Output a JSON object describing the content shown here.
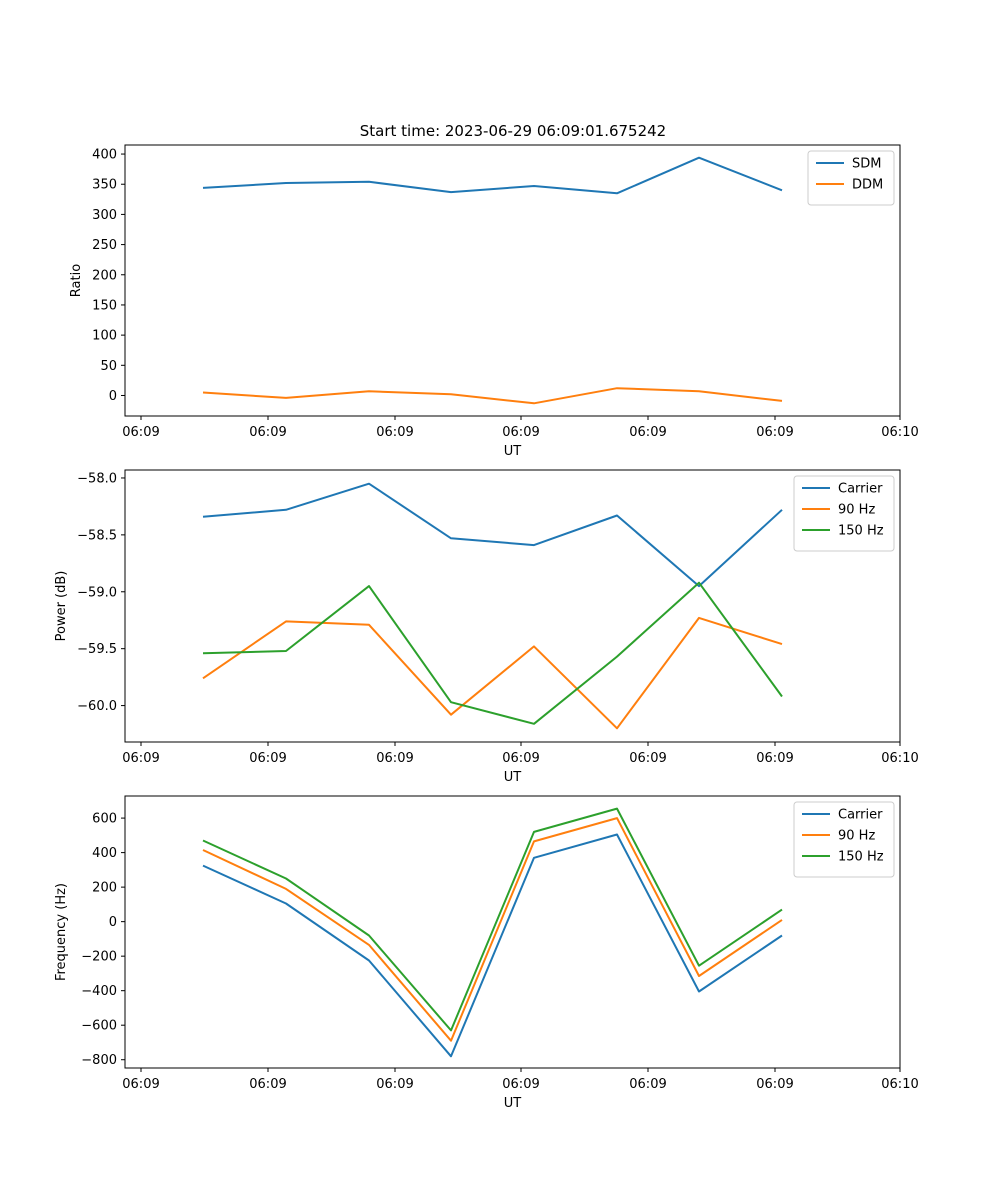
{
  "figure": {
    "title": "Start time: 2023-06-29 06:09:01.675242"
  },
  "chart_data": [
    {
      "type": "line",
      "title": "Start time: 2023-06-29 06:09:01.675242",
      "xlabel": "UT",
      "ylabel": "Ratio",
      "x_tick_labels": [
        "06:09",
        "06:09",
        "06:09",
        "06:09",
        "06:09",
        "06:09",
        "06:10"
      ],
      "y_ticks": [
        0,
        50,
        100,
        150,
        200,
        250,
        300,
        350,
        400
      ],
      "ylim": [
        -34,
        415
      ],
      "legend": "top-right",
      "grid": false,
      "series": [
        {
          "name": "SDM",
          "color": "#1f77b4",
          "values": [
            344,
            352,
            354,
            337,
            347,
            335,
            394,
            340
          ]
        },
        {
          "name": "DDM",
          "color": "#ff7f0e",
          "values": [
            5,
            -4,
            7,
            2,
            -13,
            12,
            7,
            -9
          ]
        }
      ]
    },
    {
      "type": "line",
      "title": "",
      "xlabel": "UT",
      "ylabel": "Power (dB)",
      "x_tick_labels": [
        "06:09",
        "06:09",
        "06:09",
        "06:09",
        "06:09",
        "06:09",
        "06:10"
      ],
      "y_ticks": [
        -60.0,
        -59.5,
        -59.0,
        -58.5,
        -58.0
      ],
      "y_tick_labels": [
        "−60.0",
        "−59.5",
        "−59.0",
        "−58.5",
        "−58.0"
      ],
      "ylim": [
        -60.32,
        -57.93
      ],
      "legend": "top-right",
      "grid": false,
      "series": [
        {
          "name": "Carrier",
          "color": "#1f77b4",
          "values": [
            -58.34,
            -58.28,
            -58.05,
            -58.53,
            -58.59,
            -58.33,
            -58.95,
            -58.28
          ]
        },
        {
          "name": "90 Hz",
          "color": "#ff7f0e",
          "values": [
            -59.76,
            -59.26,
            -59.29,
            -60.08,
            -59.48,
            -60.2,
            -59.23,
            -59.46
          ]
        },
        {
          "name": "150 Hz",
          "color": "#2ca02c",
          "values": [
            -59.54,
            -59.52,
            -58.95,
            -59.97,
            -60.16,
            -59.57,
            -58.92,
            -59.92
          ]
        }
      ]
    },
    {
      "type": "line",
      "title": "",
      "xlabel": "UT",
      "ylabel": "Frequency (Hz)",
      "x_tick_labels": [
        "06:09",
        "06:09",
        "06:09",
        "06:09",
        "06:09",
        "06:09",
        "06:10"
      ],
      "y_ticks": [
        -800,
        -600,
        -400,
        -200,
        0,
        200,
        400,
        600
      ],
      "y_tick_labels": [
        "−800",
        "−600",
        "−400",
        "−200",
        "0",
        "200",
        "400",
        "600"
      ],
      "ylim": [
        -848,
        728
      ],
      "legend": "top-right",
      "grid": false,
      "series": [
        {
          "name": "Carrier",
          "color": "#1f77b4",
          "values": [
            325,
            105,
            -225,
            -780,
            370,
            505,
            -405,
            -80
          ]
        },
        {
          "name": "90 Hz",
          "color": "#ff7f0e",
          "values": [
            415,
            190,
            -135,
            -690,
            465,
            600,
            -315,
            10
          ]
        },
        {
          "name": "150 Hz",
          "color": "#2ca02c",
          "values": [
            470,
            250,
            -80,
            -630,
            520,
            655,
            -255,
            70
          ]
        }
      ]
    }
  ]
}
